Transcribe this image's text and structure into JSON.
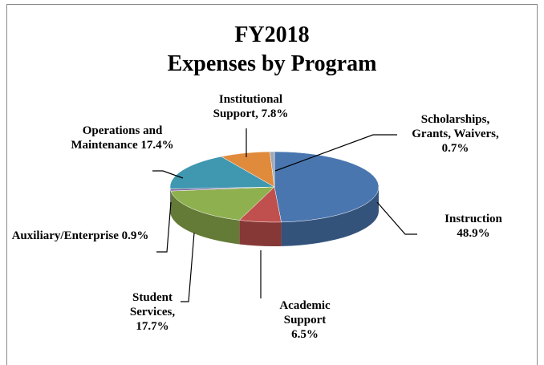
{
  "chart_data": {
    "type": "pie3d",
    "title": "FY2018",
    "subtitle": "Expenses by Program",
    "categories": [
      "Instruction",
      "Academic Support",
      "Student Services,",
      "Auxiliary/Enterprise",
      "Operations and Maintenance",
      "Institutional Support,",
      "Scholarships, Grants, Waivers,"
    ],
    "values": [
      48.9,
      6.5,
      17.7,
      0.9,
      17.4,
      7.8,
      0.7
    ],
    "value_labels": [
      "48.9%",
      "6.5%",
      "17.7%",
      "0.9%",
      "17.4%",
      "7.8%",
      "0.7%"
    ],
    "colors": [
      "#4a76b0",
      "#c0504d",
      "#8fb04f",
      "#7a5f9e",
      "#3f98b0",
      "#e08a3c",
      "#a0a8b8"
    ]
  }
}
